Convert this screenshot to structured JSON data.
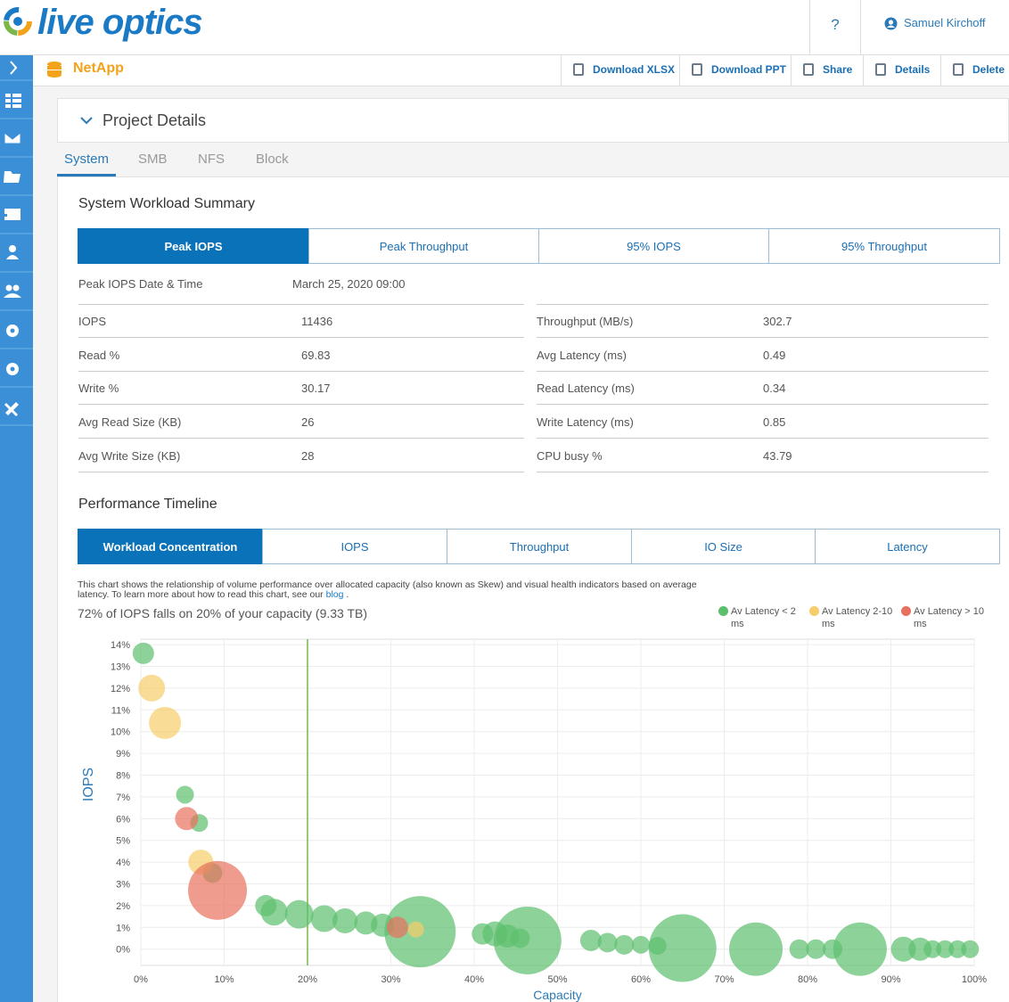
{
  "header": {
    "logo": "live optics",
    "help": "?",
    "user": "Samuel Kirchoff"
  },
  "toolbar": {
    "project": "NetApp",
    "actions": [
      "Download XLSX",
      "Download PPT",
      "Share",
      "Details",
      "Delete"
    ]
  },
  "panel_title": "Project Details",
  "tabs": [
    "System",
    "SMB",
    "NFS",
    "Block"
  ],
  "summary": {
    "title": "System Workload Summary",
    "buttons": [
      "Peak IOPS",
      "Peak Throughput",
      "95% IOPS",
      "95% Throughput"
    ],
    "date_label": "Peak IOPS Date & Time",
    "date_value": "March 25, 2020 09:00",
    "left": [
      {
        "label": "IOPS",
        "value": 11436
      },
      {
        "label": "Read %",
        "value": 69.83
      },
      {
        "label": "Write %",
        "value": 30.17
      },
      {
        "label": "Avg Read Size (KB)",
        "value": 26
      },
      {
        "label": "Avg Write Size (KB)",
        "value": 28
      }
    ],
    "right": [
      {
        "label": "Throughput (MB/s)",
        "value": 302.7
      },
      {
        "label": "Avg Latency (ms)",
        "value": 0.49
      },
      {
        "label": "Read Latency (ms)",
        "value": 0.34
      },
      {
        "label": "Write Latency (ms)",
        "value": 0.85
      },
      {
        "label": "CPU busy %",
        "value": 43.79
      }
    ]
  },
  "timeline": {
    "title": "Performance Timeline",
    "buttons": [
      "Workload Concentration",
      "IOPS",
      "Throughput",
      "IO Size",
      "Latency"
    ],
    "description": "This chart shows the relationship of volume performance over allocated capacity (also known as Skew) and visual health indicators based on average latency. To learn more about how to read this chart, see our",
    "link": "blog",
    "link_suffix": "."
  },
  "chart_data": {
    "type": "bubble",
    "subtitle": "72% of IOPS falls on 20% of your capacity (9.33 TB)",
    "x_label": "Capacity",
    "y_label": "IOPS",
    "xlim": [
      0,
      100
    ],
    "ylim": [
      -0.75,
      14.25
    ],
    "xticks": [
      {
        "value": 0,
        "label": "0%"
      },
      {
        "value": 10,
        "label": "10%"
      },
      {
        "value": 20,
        "label": "20%"
      },
      {
        "value": 30,
        "label": "30%"
      },
      {
        "value": 40,
        "label": "40%"
      },
      {
        "value": 50,
        "label": "50%"
      },
      {
        "value": 60,
        "label": "60%"
      },
      {
        "value": 70,
        "label": "70%"
      },
      {
        "value": 80,
        "label": "80%"
      },
      {
        "value": 90,
        "label": "90%"
      },
      {
        "value": 100,
        "label": "100%"
      }
    ],
    "yticks": [
      {
        "value": 0,
        "label": "0%"
      },
      {
        "value": 1,
        "label": "1%"
      },
      {
        "value": 2,
        "label": "2%"
      },
      {
        "value": 3,
        "label": "3%"
      },
      {
        "value": 4,
        "label": "4%"
      },
      {
        "value": 5,
        "label": "5%"
      },
      {
        "value": 6,
        "label": "6%"
      },
      {
        "value": 7,
        "label": "7%"
      },
      {
        "value": 8,
        "label": "8%"
      },
      {
        "value": 9,
        "label": "9%"
      },
      {
        "value": 10,
        "label": "10%"
      },
      {
        "value": 11,
        "label": "11%"
      },
      {
        "value": 12,
        "label": "12%"
      },
      {
        "value": 13,
        "label": "13%"
      },
      {
        "value": 14,
        "label": "14%"
      }
    ],
    "grid": true,
    "legend": "top-right",
    "vline": 20,
    "vline_color": "#7ab648",
    "series": [
      {
        "name": "Av Latency < 2 ms",
        "color": "#5cbf6e",
        "x": [
          0.3,
          5.3,
          7.0,
          8.6,
          15,
          16,
          19,
          22,
          24.5,
          27,
          29,
          33.5,
          41,
          42.5,
          44,
          45.5,
          46.4,
          54,
          56,
          58,
          60,
          62,
          65,
          73.8,
          79,
          81,
          83,
          86.3,
          91.5,
          93.5,
          95,
          96.5,
          98,
          99.5
        ],
        "values": [
          13.6,
          7.1,
          5.8,
          3.5,
          2.0,
          1.7,
          1.6,
          1.4,
          1.3,
          1.2,
          1.1,
          0.8,
          0.7,
          0.7,
          0.6,
          0.5,
          0.4,
          0.4,
          0.3,
          0.2,
          0.2,
          0.15,
          0.05,
          0,
          0,
          0,
          0,
          0,
          0,
          0,
          0,
          0,
          0,
          0
        ],
        "sizes": [
          12,
          10,
          10,
          11,
          12,
          15,
          16,
          15,
          14,
          13,
          13,
          40,
          12,
          14,
          13,
          11,
          38,
          12,
          11,
          11,
          10,
          10,
          38,
          30,
          11,
          11,
          11,
          30,
          14,
          13,
          10,
          10,
          10,
          10
        ]
      },
      {
        "name": "Av Latency 2-10 ms",
        "color": "#f6cd6a",
        "x": [
          1.3,
          2.9,
          7.2,
          33
        ],
        "values": [
          12,
          10.4,
          4,
          0.9
        ],
        "sizes": [
          15,
          18,
          14,
          9
        ]
      },
      {
        "name": "Av Latency > 10 ms",
        "color": "#e8705e",
        "x": [
          5.5,
          9.2,
          30.8
        ],
        "values": [
          6,
          2.7,
          1
        ],
        "sizes": [
          13,
          33,
          12
        ]
      }
    ]
  }
}
